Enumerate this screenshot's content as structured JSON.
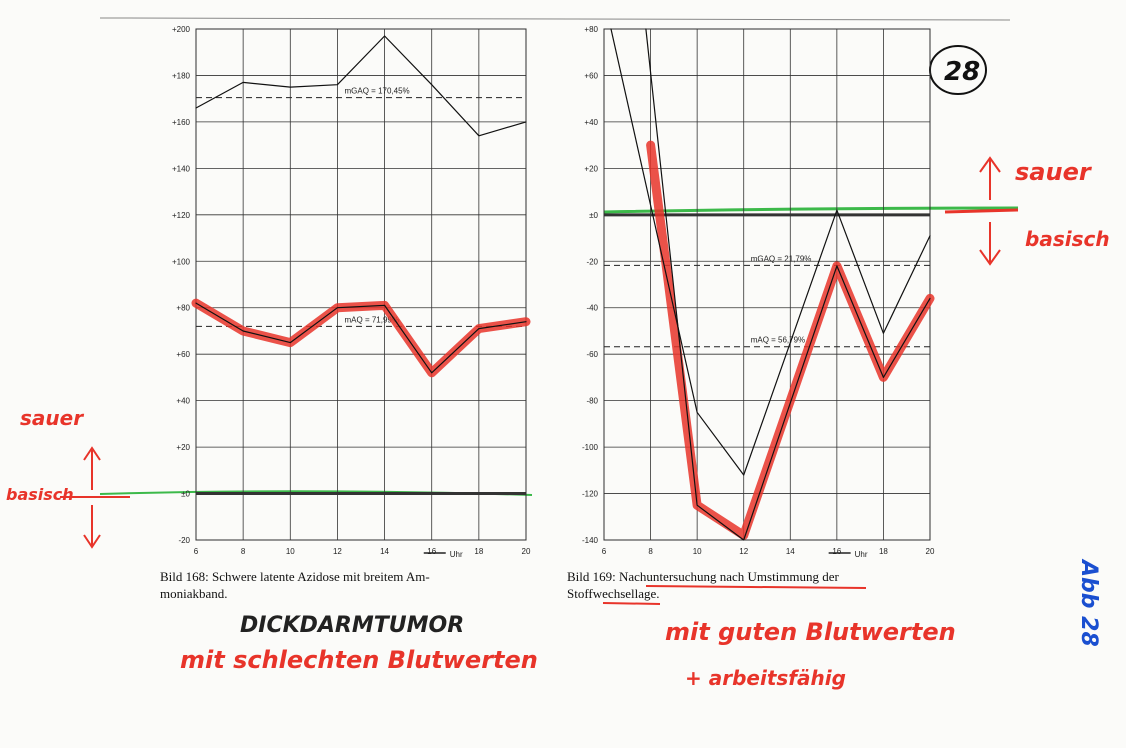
{
  "chart_data": [
    {
      "type": "line",
      "xlabel": "Uhr",
      "xlim": [
        6,
        20
      ],
      "ylim": [
        -20,
        200
      ],
      "xticks": [
        6,
        8,
        10,
        12,
        14,
        16,
        18,
        20
      ],
      "yticks": [
        {
          "value": 200,
          "label": "+200"
        },
        {
          "value": 180,
          "label": "+180"
        },
        {
          "value": 160,
          "label": "+160"
        },
        {
          "value": 140,
          "label": "+140"
        },
        {
          "value": 120,
          "label": "+120"
        },
        {
          "value": 100,
          "label": "+100"
        },
        {
          "value": 80,
          "label": "+80"
        },
        {
          "value": 60,
          "label": "+60"
        },
        {
          "value": 40,
          "label": "+40"
        },
        {
          "value": 20,
          "label": "+20"
        },
        {
          "value": 0,
          "label": "±0"
        },
        -20
      ],
      "grid": true,
      "series": [
        {
          "color": "#e8342a",
          "highlight": true,
          "x": [
            6,
            8,
            10,
            12,
            14,
            16,
            18,
            20
          ],
          "values": [
            82,
            70,
            65,
            80,
            81,
            52,
            71,
            74
          ]
        },
        {
          "color": "#111111",
          "x": [
            6,
            8,
            10,
            12,
            14,
            16,
            18,
            20
          ],
          "values": [
            166,
            177,
            175,
            176,
            197,
            176,
            154,
            160
          ]
        },
        {
          "color": "#111111",
          "x": [
            6,
            8,
            10,
            12,
            14,
            16,
            18,
            20
          ],
          "values": [
            82,
            70,
            65,
            80,
            81,
            52,
            71,
            74
          ]
        }
      ],
      "ref_lines": [
        {
          "value": 170.45,
          "label": "mGAQ = 170,45%"
        },
        {
          "value": 71.99,
          "label": "mAQ = 71,99%"
        }
      ]
    },
    {
      "type": "line",
      "xlabel": "Uhr",
      "xlim": [
        6,
        20
      ],
      "ylim": [
        -140,
        80
      ],
      "xticks": [
        6,
        8,
        10,
        12,
        14,
        16,
        18,
        20
      ],
      "yticks": [
        {
          "value": 80,
          "label": "+80"
        },
        {
          "value": 60,
          "label": "+60"
        },
        {
          "value": 40,
          "label": "+40"
        },
        {
          "value": 20,
          "label": "+20"
        },
        {
          "value": 0,
          "label": "±0"
        },
        -20,
        -40,
        -60,
        -80,
        -100,
        -120,
        -140
      ],
      "grid": true,
      "series": [
        {
          "color": "#e8342a",
          "highlight": true,
          "x": [
            8,
            10,
            12,
            16,
            18,
            20
          ],
          "values": [
            30,
            -125,
            -138,
            -22,
            -70,
            -36
          ]
        },
        {
          "color": "#111111",
          "x": [
            6.3,
            10,
            12,
            16,
            18,
            20
          ],
          "values": [
            80,
            -85,
            -112,
            2,
            -51,
            -9
          ]
        },
        {
          "color": "#111111",
          "x": [
            7.8,
            10,
            12,
            16,
            18,
            20
          ],
          "values": [
            80,
            -125,
            -140,
            -22,
            -70,
            -36
          ]
        }
      ],
      "ref_lines": [
        {
          "value": -21.79,
          "label": "mGAQ = 21,79%"
        },
        {
          "value": -56.79,
          "label": "mAQ = 56,79%"
        }
      ]
    }
  ],
  "captions": [
    [
      "Bild 168: Schwere latente Azidose mit breitem Am-",
      "moniakband."
    ],
    [
      "Bild 169: Nachuntersuchung nach Umstimmung der",
      "Stoffwechsellage."
    ]
  ],
  "handwriting": [
    "sauer",
    "basisch",
    "sauer",
    "basisch",
    "DICKDARMTUMOR",
    "mit schlechten Blutwerten",
    "mit guten Blutwerten",
    "+ arbeitsfähig",
    "Abb 28",
    "28"
  ]
}
